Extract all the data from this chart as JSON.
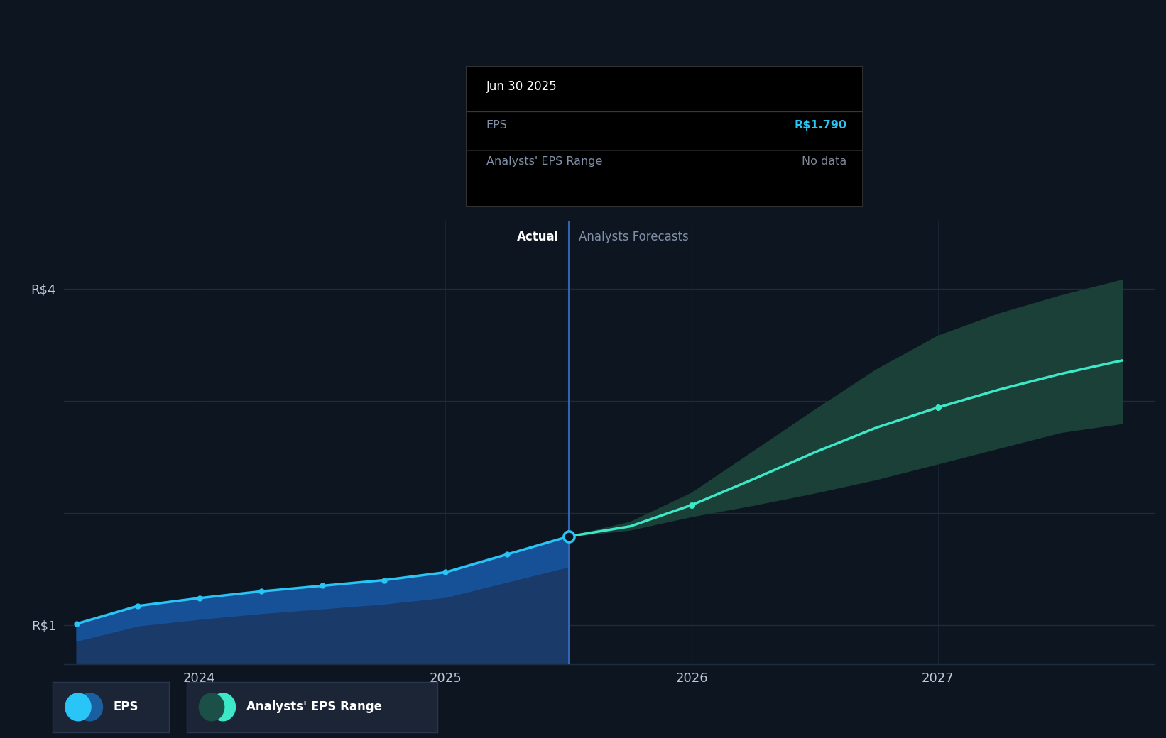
{
  "bg_color": "#0d1520",
  "chart_bg_color": "#0d1520",
  "grid_color": "#1e2d3d",
  "axis_tick_color": "#c0c8d8",
  "muted_color": "#8090a8",
  "divider_line_color": "#2a5090",
  "actual_line_color": "#29c5f6",
  "actual_fill_color": "#1655a0",
  "actual_fill_lower_color": "#1a3a6a",
  "forecast_line_color": "#3de8c8",
  "forecast_fill_color": "#1a4038",
  "tooltip_bg": "#000000",
  "tooltip_border": "#383838",
  "eps_value_color": "#29c5f6",
  "muted_value_color": "#808898",
  "white_color": "#ffffff",
  "x_lim": [
    2023.45,
    2027.88
  ],
  "y_lim": [
    0.65,
    4.6
  ],
  "y_ticks": [
    1.0,
    2.0,
    3.0,
    4.0
  ],
  "y_tick_labels": [
    "R$1",
    "",
    "",
    "R$4"
  ],
  "x_ticks": [
    2024.0,
    2025.0,
    2026.0,
    2027.0
  ],
  "divider_x": 2025.5,
  "actual_x": [
    2023.5,
    2023.75,
    2024.0,
    2024.25,
    2024.5,
    2024.75,
    2025.0,
    2025.25,
    2025.5
  ],
  "actual_y": [
    1.01,
    1.17,
    1.24,
    1.3,
    1.35,
    1.4,
    1.47,
    1.63,
    1.79
  ],
  "actual_fill_upper": [
    1.01,
    1.22,
    1.35,
    1.45,
    1.52,
    1.57,
    1.62,
    1.7,
    1.79
  ],
  "forecast_x": [
    2025.5,
    2025.75,
    2026.0,
    2026.25,
    2026.5,
    2026.75,
    2027.0,
    2027.25,
    2027.5,
    2027.75
  ],
  "forecast_y": [
    1.79,
    1.88,
    2.07,
    2.3,
    2.54,
    2.76,
    2.94,
    3.1,
    3.24,
    3.36
  ],
  "forecast_upper": [
    1.79,
    1.92,
    2.18,
    2.55,
    2.92,
    3.28,
    3.58,
    3.78,
    3.94,
    4.08
  ],
  "forecast_lower": [
    1.79,
    1.85,
    1.97,
    2.07,
    2.18,
    2.3,
    2.44,
    2.58,
    2.72,
    2.8
  ],
  "dot_actual_indices": [
    0,
    1,
    2,
    3,
    4,
    5,
    6,
    7,
    8
  ],
  "dot_forecast_indices": [
    2,
    6
  ],
  "highlighted_x": 2025.5,
  "highlighted_y": 1.79,
  "tooltip_title": "Jun 30 2025",
  "tooltip_eps_label": "EPS",
  "tooltip_eps_value": "R$1.790",
  "tooltip_range_label": "Analysts' EPS Range",
  "tooltip_range_value": "No data",
  "actual_label": "Actual",
  "forecast_label": "Analysts Forecasts",
  "legend_eps_label": "EPS",
  "legend_range_label": "Analysts' EPS Range",
  "legend_bg": "#1c2535"
}
